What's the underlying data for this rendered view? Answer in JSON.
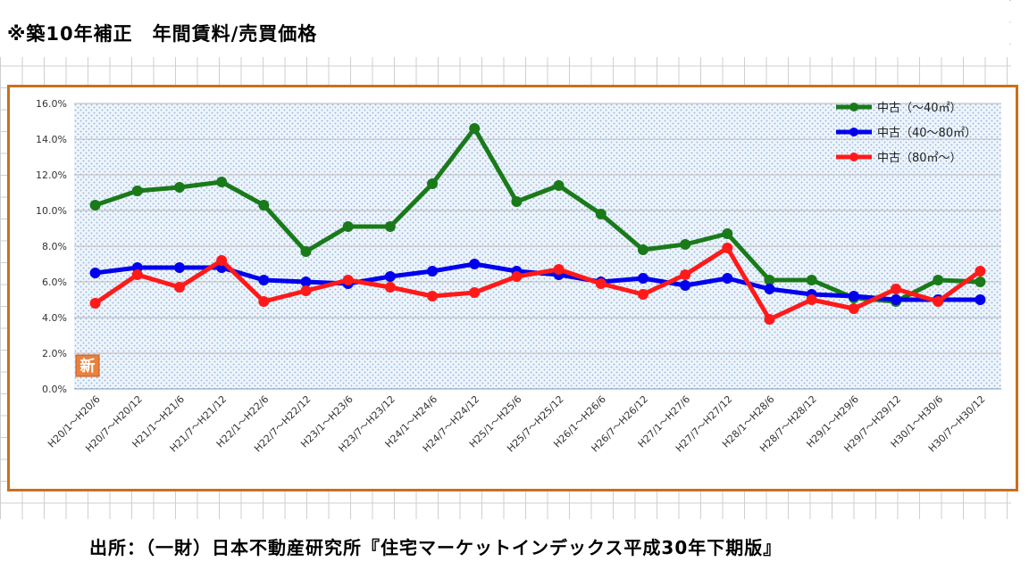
{
  "page": {
    "title": "※築10年補正　年間賃料/売買価格",
    "source": "出所：（一財）日本不動産研究所『住宅マーケットインデックス平成30年下期版』"
  },
  "chart_data": {
    "type": "line",
    "title": "",
    "xlabel": "",
    "ylabel": "",
    "ylim": [
      0,
      16
    ],
    "y_ticks": [
      "0.0%",
      "2.0%",
      "4.0%",
      "6.0%",
      "8.0%",
      "10.0%",
      "12.0%",
      "14.0%",
      "16.0%"
    ],
    "grid": true,
    "legend_position": "top-right",
    "badge": "新",
    "categories": [
      "H20/1〜H20/6",
      "H20/7〜H20/12",
      "H21/1〜H21/6",
      "H21/7〜H21/12",
      "H22/1〜H22/6",
      "H22/7〜H22/12",
      "H23/1〜H23/6",
      "H23/7〜H23/12",
      "H24/1〜H24/6",
      "H24/7〜H24/12",
      "H25/1〜H25/6",
      "H25/7〜H25/12",
      "H26/1〜H26/6",
      "H26/7〜H26/12",
      "H27/1〜H27/6",
      "H27/7〜H27/12",
      "H28/1〜H28/6",
      "H28/7〜H28/12",
      "H29/1〜H29/6",
      "H29/7〜H29/12",
      "H30/1〜H30/6",
      "H30/7〜H30/12"
    ],
    "series": [
      {
        "name": "中古（〜40㎡）",
        "color": "#1a7a1a",
        "values": [
          10.3,
          11.1,
          11.3,
          11.6,
          10.3,
          7.7,
          9.1,
          9.1,
          11.5,
          14.6,
          10.5,
          11.4,
          9.8,
          7.8,
          8.1,
          8.7,
          6.1,
          6.1,
          5.1,
          4.9,
          6.1,
          6.0
        ]
      },
      {
        "name": "中古（40〜80㎡）",
        "color": "#0000ee",
        "values": [
          6.5,
          6.8,
          6.8,
          6.8,
          6.1,
          6.0,
          5.9,
          6.3,
          6.6,
          7.0,
          6.6,
          6.4,
          6.0,
          6.2,
          5.8,
          6.2,
          5.6,
          5.3,
          5.2,
          5.0,
          5.0,
          5.0
        ]
      },
      {
        "name": "中古（80㎡〜）",
        "color": "#ff1a1a",
        "values": [
          4.8,
          6.4,
          5.7,
          7.2,
          4.9,
          5.5,
          6.1,
          5.7,
          5.2,
          5.4,
          6.3,
          6.7,
          5.9,
          5.3,
          6.4,
          7.9,
          3.9,
          5.0,
          4.5,
          5.6,
          4.9,
          6.6
        ]
      }
    ]
  }
}
